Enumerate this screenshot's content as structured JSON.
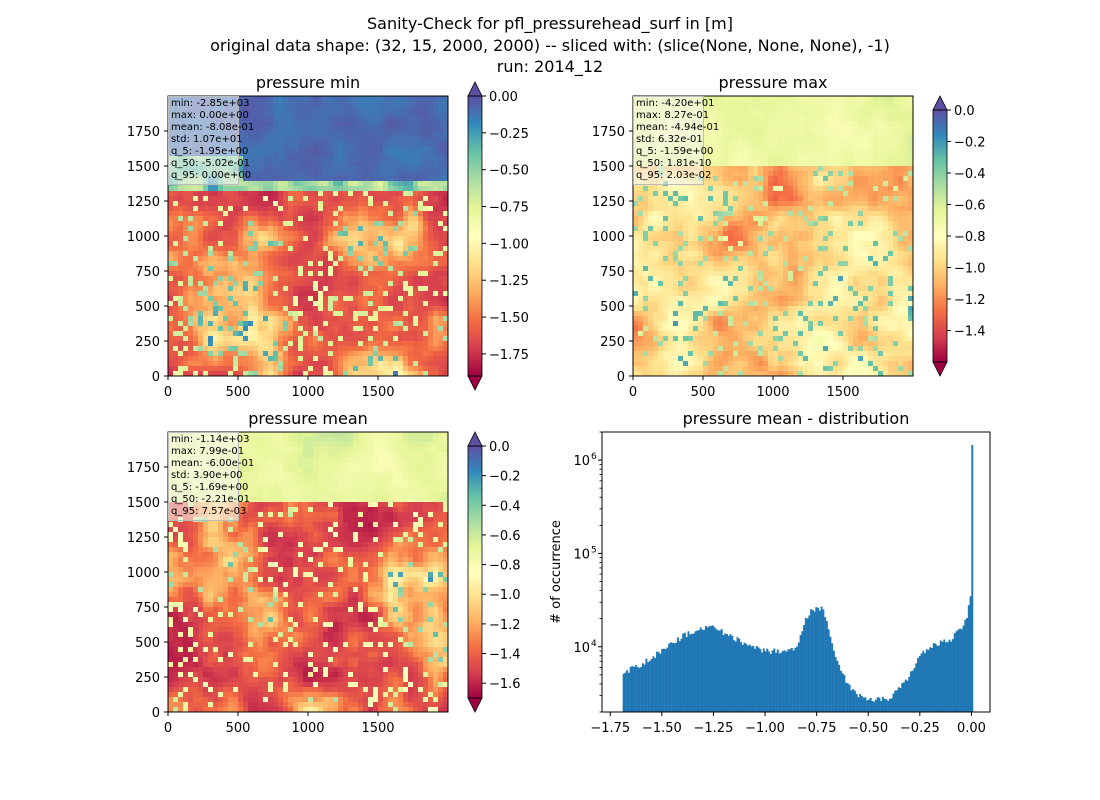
{
  "figure": {
    "title_lines": [
      "Sanity-Check for pfl_pressurehead_surf in [m]",
      "original data shape: (32, 15, 2000, 2000) -- sliced with: (slice(None, None, None), -1)",
      "run: 2014_12"
    ]
  },
  "chart_data": [
    {
      "type": "heatmap",
      "title": "pressure min",
      "xlim": [
        0,
        2000
      ],
      "ylim": [
        0,
        2000
      ],
      "xticks": [
        0,
        500,
        1000,
        1500
      ],
      "yticks": [
        0,
        250,
        500,
        750,
        1000,
        1250,
        1500,
        1750
      ],
      "colorbar": {
        "cmap": "Spectral",
        "range": [
          -1.9,
          0.0
        ],
        "extend": "both",
        "ticks": [
          "0.00",
          "−0.25",
          "−0.50",
          "−0.75",
          "−1.00",
          "−1.25",
          "−1.50",
          "−1.75"
        ],
        "tick_values": [
          0.0,
          -0.25,
          -0.5,
          -0.75,
          -1.0,
          -1.25,
          -1.5,
          -1.75
        ]
      },
      "stats": [
        "min: -2.85e+03",
        "max: 0.00e+00",
        "mean: -8.08e-01",
        "std: 1.07e+01",
        "q_5: -1.95e+00",
        "q_50: -5.02e-01",
        "q_95: 0.00e+00"
      ]
    },
    {
      "type": "heatmap",
      "title": "pressure max",
      "xlim": [
        0,
        2000
      ],
      "ylim": [
        0,
        2000
      ],
      "xticks": [
        0,
        500,
        1000,
        1500
      ],
      "yticks": [
        0,
        250,
        500,
        750,
        1000,
        1250,
        1500,
        1750
      ],
      "colorbar": {
        "cmap": "Spectral",
        "range": [
          -1.6,
          0.0
        ],
        "extend": "both",
        "ticks": [
          "0.0",
          "−0.2",
          "−0.4",
          "−0.6",
          "−0.8",
          "−1.0",
          "−1.2",
          "−1.4"
        ],
        "tick_values": [
          0.0,
          -0.2,
          -0.4,
          -0.6,
          -0.8,
          -1.0,
          -1.2,
          -1.4
        ]
      },
      "stats": [
        "min: -4.20e+01",
        "max: 8.27e-01",
        "mean: -4.94e-01",
        "std: 6.32e-01",
        "q_5: -1.59e+00",
        "q_50: 1.81e-10",
        "q_95: 2.03e-02"
      ]
    },
    {
      "type": "heatmap",
      "title": "pressure mean",
      "xlim": [
        0,
        2000
      ],
      "ylim": [
        0,
        2000
      ],
      "xticks": [
        0,
        500,
        1000,
        1500
      ],
      "yticks": [
        0,
        250,
        500,
        750,
        1000,
        1250,
        1500,
        1750
      ],
      "colorbar": {
        "cmap": "Spectral",
        "range": [
          -1.7,
          0.0
        ],
        "extend": "both",
        "ticks": [
          "0.0",
          "−0.2",
          "−0.4",
          "−0.6",
          "−0.8",
          "−1.0",
          "−1.2",
          "−1.4",
          "−1.6"
        ],
        "tick_values": [
          0.0,
          -0.2,
          -0.4,
          -0.6,
          -0.8,
          -1.0,
          -1.2,
          -1.4,
          -1.6
        ]
      },
      "stats": [
        "min: -1.14e+03",
        "max: 7.99e-01",
        "mean: -6.00e-01",
        "std: 3.90e+00",
        "q_5: -1.69e+00",
        "q_50: -2.21e-01",
        "q_95: 7.57e-03"
      ]
    },
    {
      "type": "bar",
      "title": "pressure mean - distribution",
      "ylabel": "# of occurrence",
      "yscale": "log",
      "xlim": [
        -1.79,
        0.09
      ],
      "ylim": [
        2000,
        2000000
      ],
      "xticks": [
        -1.75,
        -1.5,
        -1.25,
        -1.0,
        -0.75,
        -0.5,
        -0.25,
        0.0
      ],
      "xtick_labels": [
        "−1.75",
        "−1.50",
        "−1.25",
        "−1.00",
        "−0.75",
        "−0.50",
        "−0.25",
        "0.00"
      ],
      "yticks": [
        10000,
        100000,
        1000000
      ],
      "ytick_labels": [
        "10",
        "10",
        "10"
      ],
      "ytick_exponents": [
        "4",
        "5",
        "6"
      ],
      "color": "#1f77b4",
      "bin_range": [
        -1.69,
        0.008
      ],
      "n_bins": 200,
      "envelope": {
        "x": [
          -1.69,
          -1.6,
          -1.5,
          -1.4,
          -1.3,
          -1.25,
          -1.2,
          -1.1,
          -1.0,
          -0.95,
          -0.9,
          -0.85,
          -0.8,
          -0.77,
          -0.75,
          -0.72,
          -0.7,
          -0.68,
          -0.65,
          -0.6,
          -0.55,
          -0.5,
          -0.45,
          -0.4,
          -0.35,
          -0.3,
          -0.25,
          -0.2,
          -0.15,
          -0.1,
          -0.05,
          -0.02,
          0.0
        ],
        "y": [
          5200,
          6500,
          9000,
          13000,
          16000,
          16500,
          14000,
          11000,
          9000,
          9000,
          9000,
          9500,
          20000,
          25000,
          26000,
          25000,
          18000,
          12000,
          7000,
          4000,
          3000,
          2700,
          2700,
          2800,
          3500,
          5000,
          8000,
          10000,
          11000,
          12000,
          16000,
          22000,
          38000
        ]
      },
      "spike": {
        "x": 0.0,
        "value": 1450000
      }
    }
  ]
}
